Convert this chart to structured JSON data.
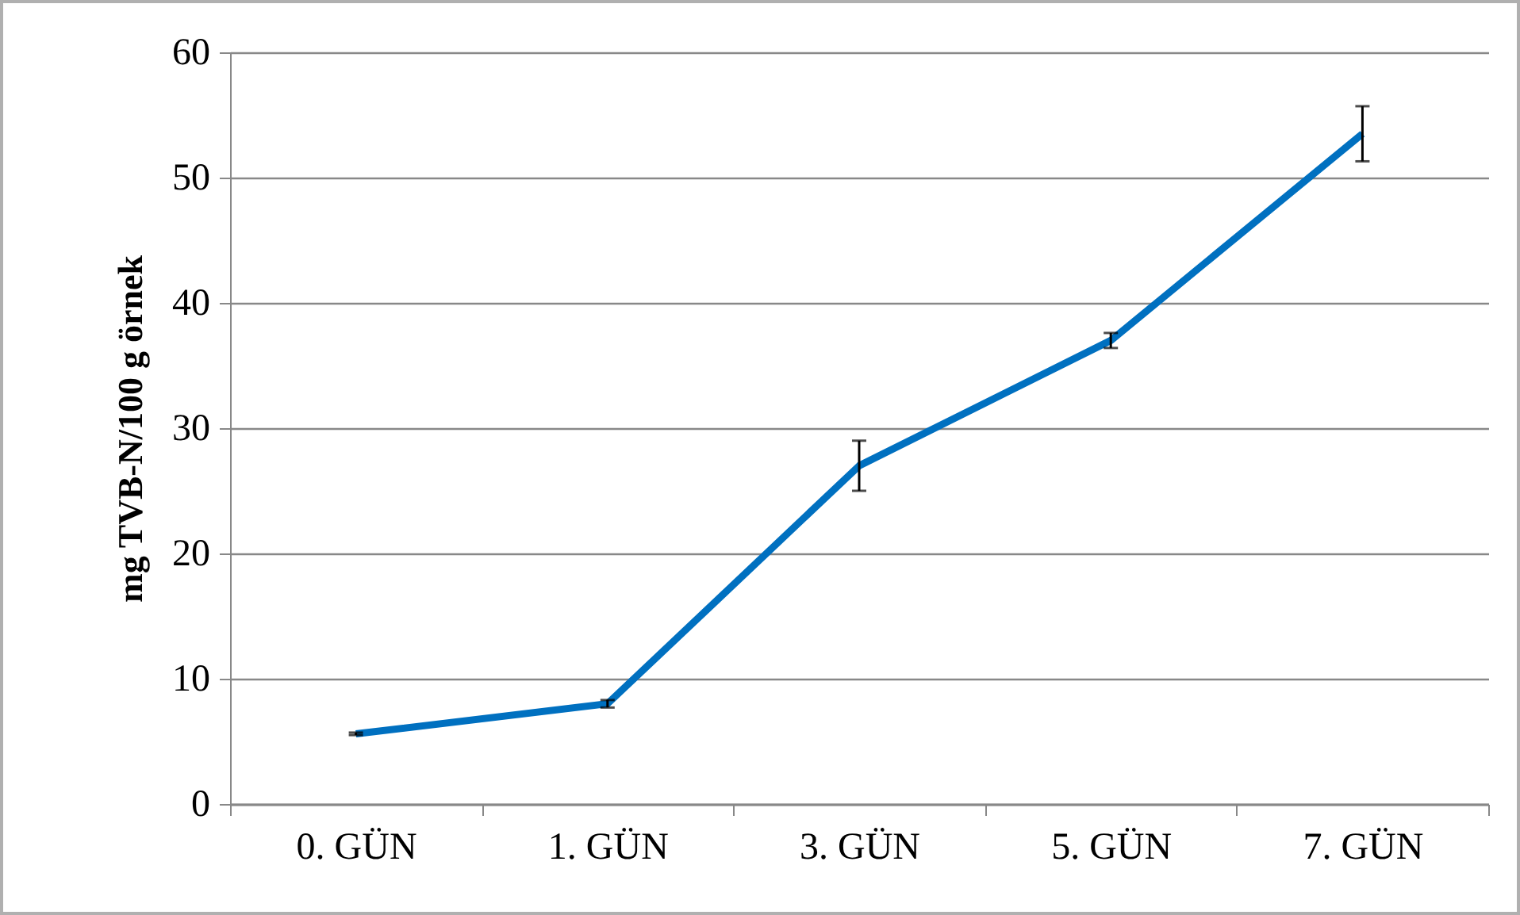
{
  "chart_data": {
    "type": "line",
    "ylabel": "mg TVB-N/100 g örnek",
    "categories": [
      "0. GÜN",
      "1. GÜN",
      "3. GÜN",
      "5. GÜN",
      "7. GÜN"
    ],
    "series": [
      {
        "color": "#0070c0",
        "values": [
          5.6,
          8.0,
          27.0,
          37.0,
          53.5
        ],
        "errors": [
          0.1,
          0.3,
          2.0,
          0.6,
          2.2
        ]
      }
    ],
    "ylim": [
      0,
      60
    ],
    "yticks": [
      0,
      10,
      20,
      30,
      40,
      50,
      60
    ],
    "grid": "y",
    "marker": "none",
    "line_style": "solid"
  }
}
